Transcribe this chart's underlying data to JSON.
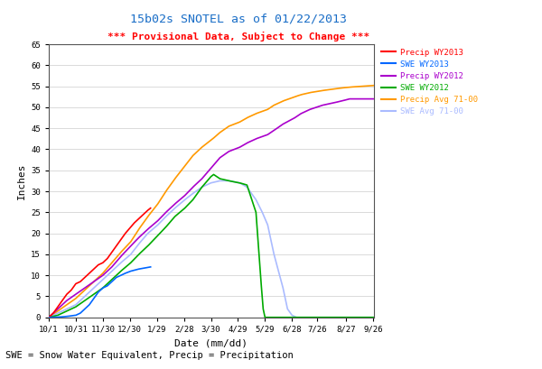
{
  "title": "15b02s SNOTEL as of 01/22/2013",
  "subtitle": "*** Provisional Data, Subject to Change ***",
  "xlabel": "Date (mm/dd)",
  "ylabel": "Inches",
  "footnote": "SWE = Snow Water Equivalent, Precip = Precipitation",
  "title_color": "#1a6ec7",
  "subtitle_color": "#ff0000",
  "footnote_color": "#000000",
  "ylim": [
    0,
    65
  ],
  "yticks": [
    0,
    5,
    10,
    15,
    20,
    25,
    30,
    35,
    40,
    45,
    50,
    55,
    60,
    65
  ],
  "xtick_labels": [
    "10/1",
    "10/31",
    "11/30",
    "12/30",
    "1/29",
    "2/28",
    "3/30",
    "4/29",
    "5/29",
    "6/28",
    "7/26",
    "8/27",
    "9/26"
  ],
  "legend_labels": [
    "Precip WY2013",
    "SWE WY2013",
    "Precip WY2012",
    "SWE WY2012",
    "Precip Avg 71-00",
    "SWE Avg 71-00"
  ],
  "legend_colors": [
    "#ff0000",
    "#0066ff",
    "#aa00cc",
    "#00aa00",
    "#ff9900",
    "#aabbff"
  ],
  "bg_color": "#ffffff"
}
